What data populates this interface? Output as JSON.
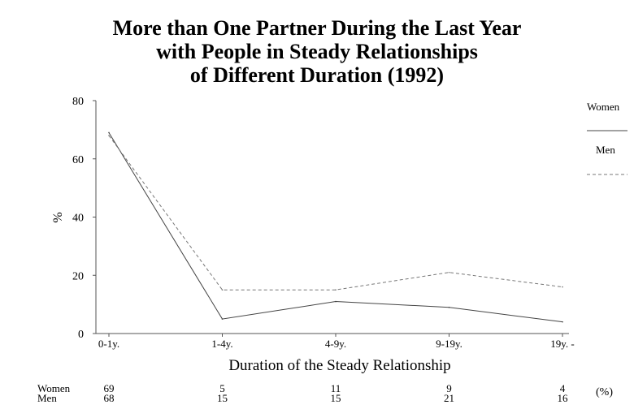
{
  "chart_data": {
    "type": "line",
    "title_lines": [
      "More than One Partner During the Last Year",
      "with People in Steady Relationships",
      "of Different Duration (1992)"
    ],
    "xlabel": "Duration of the Steady Relationship",
    "ylabel": "%",
    "categories": [
      "0-1y.",
      "1-4y.",
      "4-9y.",
      "9-19y.",
      "19y. -"
    ],
    "ylim": [
      0,
      80
    ],
    "yticks": [
      "0",
      "20",
      "40",
      "60",
      "80"
    ],
    "series": [
      {
        "name": "Women",
        "values": [
          69,
          5,
          11,
          9,
          4
        ],
        "style": "solid"
      },
      {
        "name": "Men",
        "values": [
          68,
          15,
          15,
          21,
          16
        ],
        "style": "dashed"
      }
    ],
    "legend_placement": "top-right",
    "table": {
      "row_labels": [
        "Women",
        "Men"
      ],
      "women": [
        "69",
        "5",
        "11",
        "9",
        "4"
      ],
      "men": [
        "68",
        "15",
        "15",
        "21",
        "16"
      ],
      "unit": "(%)"
    }
  }
}
